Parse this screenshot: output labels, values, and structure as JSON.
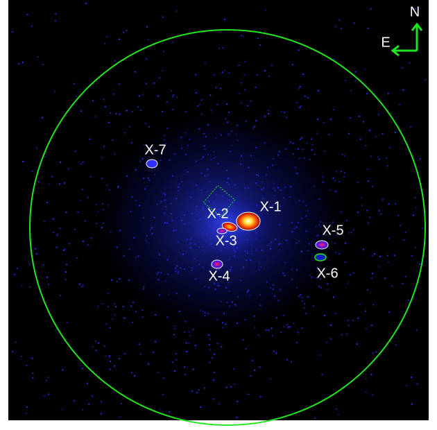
{
  "compass": {
    "north": "N",
    "east": "E"
  },
  "sources": [
    {
      "label": "X-1"
    },
    {
      "label": "X-2"
    },
    {
      "label": "X-3"
    },
    {
      "label": "X-4"
    },
    {
      "label": "X-5"
    },
    {
      "label": "X-6"
    },
    {
      "label": "X-7"
    }
  ]
}
